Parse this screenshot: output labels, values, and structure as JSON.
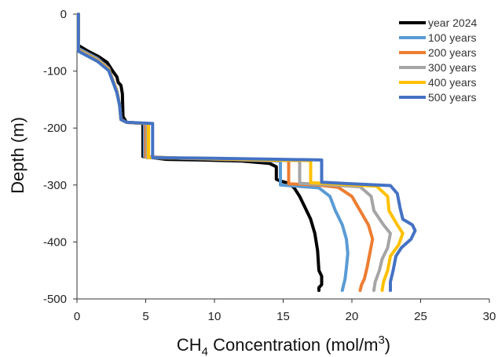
{
  "chart_data": {
    "type": "line",
    "title": "",
    "xlabel": {
      "main": "CH",
      "sub": "4",
      "rest": " Concentration (mol/m",
      "sup": "3",
      "end": ")"
    },
    "ylabel": "Depth (m)",
    "xlim": [
      0,
      30
    ],
    "ylim": [
      -500,
      0
    ],
    "x_ticks": [
      "0",
      "5",
      "10",
      "15",
      "20",
      "25",
      "30"
    ],
    "y_ticks": [
      "0",
      "-100",
      "-200",
      "-300",
      "-400",
      "-500"
    ],
    "grid": false,
    "legend_position": "top-right",
    "series": [
      {
        "name": "year 2024",
        "color": "#000000",
        "points": [
          [
            0.1,
            0
          ],
          [
            0.1,
            -55
          ],
          [
            0.8,
            -65
          ],
          [
            1.6,
            -75
          ],
          [
            2.2,
            -85
          ],
          [
            2.6,
            -100
          ],
          [
            2.9,
            -110
          ],
          [
            3.0,
            -120
          ],
          [
            3.2,
            -125
          ],
          [
            3.3,
            -140
          ],
          [
            3.35,
            -180
          ],
          [
            3.6,
            -190
          ],
          [
            4.8,
            -192
          ],
          [
            4.8,
            -250
          ],
          [
            6.5,
            -255
          ],
          [
            9.0,
            -256
          ],
          [
            12.0,
            -258
          ],
          [
            14.0,
            -262
          ],
          [
            14.5,
            -268
          ],
          [
            14.5,
            -290
          ],
          [
            14.8,
            -293
          ],
          [
            15.4,
            -297
          ],
          [
            15.8,
            -305
          ],
          [
            16.2,
            -320
          ],
          [
            16.6,
            -340
          ],
          [
            17.0,
            -360
          ],
          [
            17.3,
            -385
          ],
          [
            17.5,
            -415
          ],
          [
            17.6,
            -450
          ],
          [
            17.8,
            -460
          ],
          [
            17.8,
            -475
          ],
          [
            17.6,
            -480
          ],
          [
            17.6,
            -485
          ]
        ]
      },
      {
        "name": "100 years",
        "color": "#5a9bd5",
        "points": [
          [
            0.1,
            0
          ],
          [
            0.1,
            -60
          ],
          [
            1.5,
            -78
          ],
          [
            2.3,
            -95
          ],
          [
            2.6,
            -115
          ],
          [
            2.9,
            -135
          ],
          [
            3.1,
            -160
          ],
          [
            3.2,
            -185
          ],
          [
            3.6,
            -190
          ],
          [
            4.9,
            -192
          ],
          [
            4.9,
            -250
          ],
          [
            7.5,
            -253
          ],
          [
            12.0,
            -256
          ],
          [
            14.8,
            -258
          ],
          [
            14.8,
            -300
          ],
          [
            16.5,
            -303
          ],
          [
            17.6,
            -305
          ],
          [
            18.4,
            -320
          ],
          [
            18.8,
            -345
          ],
          [
            19.3,
            -370
          ],
          [
            19.6,
            -395
          ],
          [
            19.7,
            -420
          ],
          [
            19.6,
            -445
          ],
          [
            19.5,
            -465
          ],
          [
            19.4,
            -475
          ],
          [
            19.3,
            -485
          ]
        ]
      },
      {
        "name": "200 years",
        "color": "#ed7d31",
        "points": [
          [
            0.1,
            0
          ],
          [
            0.1,
            -62
          ],
          [
            1.5,
            -80
          ],
          [
            2.3,
            -96
          ],
          [
            2.6,
            -115
          ],
          [
            2.9,
            -135
          ],
          [
            3.1,
            -160
          ],
          [
            3.2,
            -185
          ],
          [
            3.6,
            -190
          ],
          [
            5.0,
            -192
          ],
          [
            5.0,
            -251
          ],
          [
            8.0,
            -253
          ],
          [
            12.5,
            -256
          ],
          [
            15.4,
            -257
          ],
          [
            15.4,
            -298
          ],
          [
            17.5,
            -300
          ],
          [
            19.0,
            -304
          ],
          [
            20.0,
            -320
          ],
          [
            20.6,
            -345
          ],
          [
            21.2,
            -370
          ],
          [
            21.5,
            -395
          ],
          [
            21.3,
            -420
          ],
          [
            21.1,
            -445
          ],
          [
            20.9,
            -465
          ],
          [
            20.7,
            -475
          ],
          [
            20.6,
            -485
          ]
        ]
      },
      {
        "name": "300 years",
        "color": "#a5a5a5",
        "points": [
          [
            0.1,
            0
          ],
          [
            0.1,
            -63
          ],
          [
            1.5,
            -81
          ],
          [
            2.3,
            -97
          ],
          [
            2.6,
            -116
          ],
          [
            2.9,
            -136
          ],
          [
            3.1,
            -160
          ],
          [
            3.2,
            -185
          ],
          [
            3.6,
            -190
          ],
          [
            5.1,
            -192
          ],
          [
            5.1,
            -252
          ],
          [
            8.5,
            -253
          ],
          [
            13.0,
            -256
          ],
          [
            16.2,
            -257
          ],
          [
            16.2,
            -297
          ],
          [
            18.5,
            -300
          ],
          [
            20.6,
            -303
          ],
          [
            21.4,
            -320
          ],
          [
            21.6,
            -345
          ],
          [
            22.3,
            -370
          ],
          [
            22.8,
            -385
          ],
          [
            22.6,
            -410
          ],
          [
            22.2,
            -430
          ],
          [
            22.0,
            -450
          ],
          [
            21.7,
            -470
          ],
          [
            21.6,
            -485
          ]
        ]
      },
      {
        "name": "400 years",
        "color": "#ffc000",
        "points": [
          [
            0.1,
            0
          ],
          [
            0.1,
            -64
          ],
          [
            1.5,
            -82
          ],
          [
            2.3,
            -98
          ],
          [
            2.6,
            -117
          ],
          [
            2.9,
            -137
          ],
          [
            3.1,
            -160
          ],
          [
            3.2,
            -185
          ],
          [
            3.6,
            -190
          ],
          [
            5.2,
            -192
          ],
          [
            5.2,
            -252
          ],
          [
            9.0,
            -253
          ],
          [
            14.0,
            -256
          ],
          [
            17.0,
            -257
          ],
          [
            17.0,
            -296
          ],
          [
            19.5,
            -299
          ],
          [
            21.8,
            -302
          ],
          [
            22.6,
            -320
          ],
          [
            22.7,
            -345
          ],
          [
            23.3,
            -370
          ],
          [
            23.7,
            -385
          ],
          [
            23.4,
            -405
          ],
          [
            22.8,
            -425
          ],
          [
            22.6,
            -450
          ],
          [
            22.3,
            -470
          ],
          [
            22.2,
            -485
          ]
        ]
      },
      {
        "name": "500 years",
        "color": "#4472c4",
        "points": [
          [
            0.1,
            0
          ],
          [
            0.1,
            -65
          ],
          [
            1.5,
            -83
          ],
          [
            2.3,
            -99
          ],
          [
            2.6,
            -118
          ],
          [
            2.9,
            -138
          ],
          [
            3.1,
            -160
          ],
          [
            3.2,
            -185
          ],
          [
            3.6,
            -190
          ],
          [
            5.5,
            -192
          ],
          [
            5.5,
            -252
          ],
          [
            10.0,
            -253
          ],
          [
            15.0,
            -255
          ],
          [
            17.8,
            -256
          ],
          [
            17.8,
            -295
          ],
          [
            20.0,
            -298
          ],
          [
            22.8,
            -301
          ],
          [
            23.3,
            -315
          ],
          [
            23.5,
            -340
          ],
          [
            23.7,
            -360
          ],
          [
            24.4,
            -370
          ],
          [
            24.6,
            -380
          ],
          [
            24.3,
            -395
          ],
          [
            23.6,
            -410
          ],
          [
            23.2,
            -425
          ],
          [
            23.0,
            -450
          ],
          [
            22.8,
            -470
          ],
          [
            22.8,
            -485
          ]
        ]
      }
    ]
  }
}
